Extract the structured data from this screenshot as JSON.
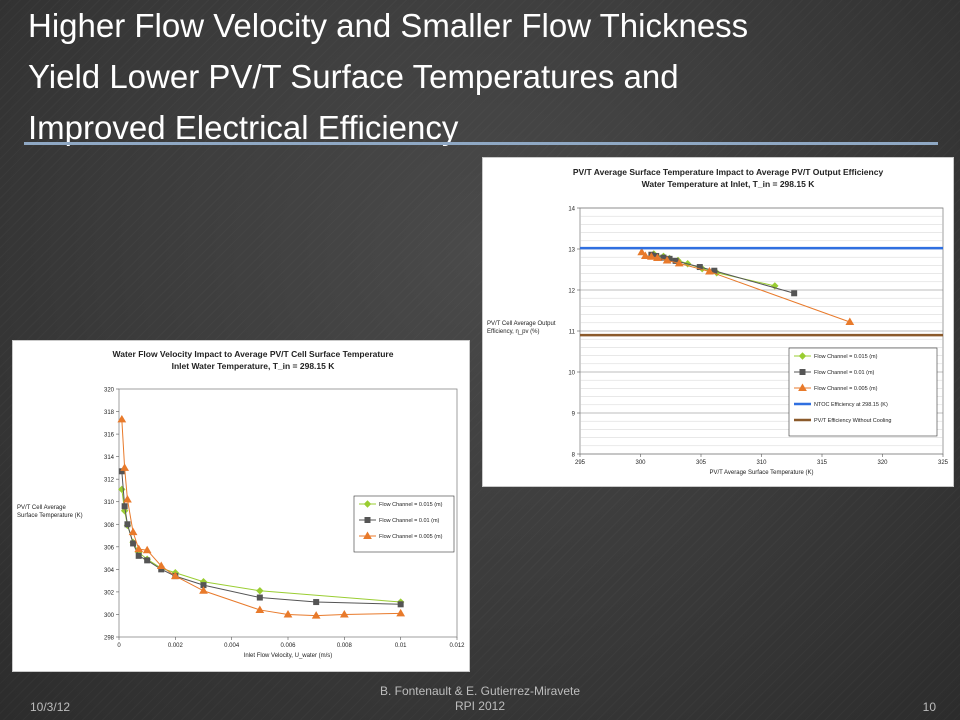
{
  "slide": {
    "title_lines": [
      "Higher Flow Velocity and Smaller Flow Thickness",
      "Yield Lower PV/T Surface Temperatures and",
      "Improved Electrical Efficiency"
    ],
    "footer": {
      "date": "10/3/12",
      "author_line1": "B. Fontenault & E. Gutierrez-Miravete",
      "author_line2": "RPI 2012",
      "page": "10"
    },
    "colors": {
      "title_rule": "#8fa8c4",
      "background": "#3a3a3a"
    }
  },
  "chart_data": [
    {
      "id": "efficiency-vs-temperature",
      "type": "line",
      "title": "PV/T Average Surface Temperature Impact to Average PV/T Output Efficiency",
      "subtitle": "Water Temperature at Inlet, T_in = 298.15 K",
      "xlabel": "PV/T Average Surface Temperature (K)",
      "ylabel": "PV/T Cell Average Output Efficiency, η_pv (%)",
      "xlim": [
        295,
        325
      ],
      "ylim": [
        8,
        14
      ],
      "xticks": [
        "295",
        "300",
        "305",
        "310",
        "315",
        "320",
        "325"
      ],
      "yticks": [
        "8",
        "9",
        "10",
        "11",
        "12",
        "13",
        "14"
      ],
      "grid": true,
      "legend_position": "bottom-right",
      "series": [
        {
          "name": "Flow Channel = 0.015 (m)",
          "color": "#9acd32",
          "marker": "diamond",
          "x": [
            301.1,
            301.9,
            302.4,
            303.1,
            303.9,
            305.1,
            306.3,
            311.1
          ],
          "y": [
            12.88,
            12.82,
            12.77,
            12.72,
            12.64,
            12.52,
            12.42,
            12.1
          ]
        },
        {
          "name": "Flow Channel = 0.01 (m)",
          "color": "#555555",
          "marker": "square",
          "x": [
            300.9,
            301.3,
            301.9,
            302.4,
            302.9,
            304.9,
            306.1,
            312.7
          ],
          "y": [
            12.86,
            12.83,
            12.79,
            12.76,
            12.71,
            12.56,
            12.47,
            11.92
          ]
        },
        {
          "name": "Flow Channel = 0.005 (m)",
          "color": "#e87a2b",
          "marker": "triangle",
          "x": [
            300.1,
            300.4,
            300.9,
            301.4,
            302.2,
            303.2,
            305.7,
            317.3
          ],
          "y": [
            12.92,
            12.83,
            12.81,
            12.78,
            12.72,
            12.65,
            12.45,
            11.22
          ]
        },
        {
          "name": "NTOC Efficiency at 298.15 (K)",
          "color": "#2f6fe0",
          "marker": "none",
          "x": [
            295,
            325
          ],
          "y": [
            13.02,
            13.02
          ]
        },
        {
          "name": "PV/T Efficiency Without Cooling",
          "color": "#8b5a2b",
          "marker": "none",
          "x": [
            295,
            325
          ],
          "y": [
            10.9,
            10.9
          ]
        }
      ]
    },
    {
      "id": "temperature-vs-velocity",
      "type": "line",
      "title": "Water Flow Velocity Impact to Average PV/T Cell Surface Temperature",
      "subtitle": "Inlet Water Temperature, T_in = 298.15 K",
      "xlabel": "Inlet Flow Velocity, U_water (m/s)",
      "ylabel": "PV/T Cell Average Surface Temperature (K)",
      "xlim": [
        0,
        0.012
      ],
      "ylim": [
        298,
        320
      ],
      "xticks": [
        "0",
        "0.002",
        "0.004",
        "0.006",
        "0.008",
        "0.01",
        "0.012"
      ],
      "yticks": [
        "298",
        "300",
        "302",
        "304",
        "306",
        "308",
        "310",
        "312",
        "314",
        "316",
        "318",
        "320"
      ],
      "grid": false,
      "legend_position": "right",
      "series": [
        {
          "name": "Flow Channel = 0.015 (m)",
          "color": "#9acd32",
          "marker": "diamond",
          "x": [
            0.0001,
            0.0002,
            0.0003,
            0.0005,
            0.0007,
            0.001,
            0.0015,
            0.002,
            0.003,
            0.005,
            0.01
          ],
          "y": [
            311.1,
            309.2,
            307.9,
            306.4,
            305.5,
            304.9,
            304.1,
            303.7,
            302.9,
            302.1,
            301.1
          ]
        },
        {
          "name": "Flow Channel = 0.01 (m)",
          "color": "#555555",
          "marker": "square",
          "x": [
            0.0001,
            0.0002,
            0.0003,
            0.0005,
            0.0007,
            0.001,
            0.0015,
            0.002,
            0.003,
            0.005,
            0.007,
            0.01
          ],
          "y": [
            312.7,
            309.6,
            308.0,
            306.3,
            305.2,
            304.8,
            304.0,
            303.4,
            302.6,
            301.5,
            301.1,
            300.9
          ]
        },
        {
          "name": "Flow Channel = 0.005 (m)",
          "color": "#e87a2b",
          "marker": "triangle",
          "x": [
            0.0001,
            0.0002,
            0.0003,
            0.0005,
            0.0007,
            0.001,
            0.0015,
            0.002,
            0.003,
            0.005,
            0.006,
            0.007,
            0.008,
            0.01
          ],
          "y": [
            317.3,
            313.0,
            310.2,
            307.3,
            305.8,
            305.7,
            304.3,
            303.4,
            302.1,
            300.4,
            300.0,
            299.9,
            300.0,
            300.1
          ]
        }
      ]
    }
  ]
}
